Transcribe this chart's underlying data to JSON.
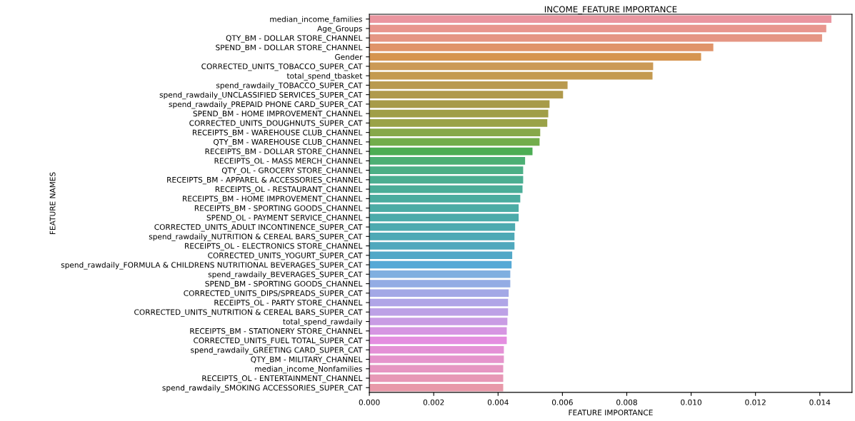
{
  "chart_data": {
    "type": "bar",
    "orientation": "horizontal",
    "title": "INCOME_FEATURE IMPORTANCE",
    "xlabel": "FEATURE IMPORTANCE",
    "ylabel": "FEATURE NAMES",
    "categories": [
      "median_income_families",
      "Age_Groups",
      "QTY_BM - DOLLAR STORE_CHANNEL",
      "SPEND_BM - DOLLAR STORE_CHANNEL",
      "Gender",
      "CORRECTED_UNITS_TOBACCO_SUPER_CAT",
      "total_spend_tbasket",
      "spend_rawdaily_TOBACCO_SUPER_CAT",
      "spend_rawdaily_UNCLASSIFIED SERVICES_SUPER_CAT",
      "spend_rawdaily_PREPAID PHONE CARD_SUPER_CAT",
      "SPEND_BM - HOME IMPROVEMENT_CHANNEL",
      "CORRECTED_UNITS_DOUGHNUTS_SUPER_CAT",
      "RECEIPTS_BM - WAREHOUSE CLUB_CHANNEL",
      "QTY_BM - WAREHOUSE CLUB_CHANNEL",
      "RECEIPTS_BM - DOLLAR STORE_CHANNEL",
      "RECEIPTS_OL - MASS MERCH_CHANNEL",
      "QTY_OL - GROCERY STORE_CHANNEL",
      "RECEIPTS_BM - APPAREL & ACCESSORIES_CHANNEL",
      "RECEIPTS_OL - RESTAURANT_CHANNEL",
      "RECEIPTS_BM - HOME IMPROVEMENT_CHANNEL",
      "RECEIPTS_BM - SPORTING GOODS_CHANNEL",
      "SPEND_OL - PAYMENT SERVICE_CHANNEL",
      "CORRECTED_UNITS_ADULT INCONTINENCE_SUPER_CAT",
      "spend_rawdaily_NUTRITION & CEREAL BARS_SUPER_CAT",
      "RECEIPTS_OL - ELECTRONICS STORE_CHANNEL",
      "CORRECTED_UNITS_YOGURT_SUPER_CAT",
      "spend_rawdaily_FORMULA & CHILDRENS NUTRITIONAL BEVERAGES_SUPER_CAT",
      "spend_rawdaily_BEVERAGES_SUPER_CAT",
      "SPEND_BM - SPORTING GOODS_CHANNEL",
      "CORRECTED_UNITS_DIPS/SPREADS_SUPER_CAT",
      "RECEIPTS_OL - PARTY STORE_CHANNEL",
      "CORRECTED_UNITS_NUTRITION & CEREAL BARS_SUPER_CAT",
      "total_spend_rawdaily",
      "RECEIPTS_BM - STATIONERY STORE_CHANNEL",
      "CORRECTED_UNITS_FUEL TOTAL_SUPER_CAT",
      "spend_rawdaily_GREETING CARD_SUPER_CAT",
      "QTY_BM - MILITARY_CHANNEL",
      "median_income_Nonfamilies",
      "RECEIPTS_OL - ENTERTAINMENT_CHANNEL",
      "spend_rawdaily_SMOKING ACCESSORIES_SUPER_CAT"
    ],
    "values": [
      0.01436,
      0.0142,
      0.01407,
      0.01069,
      0.01031,
      0.00882,
      0.0088,
      0.00616,
      0.00602,
      0.0056,
      0.00556,
      0.00553,
      0.00531,
      0.00529,
      0.00507,
      0.00484,
      0.00478,
      0.00478,
      0.00476,
      0.00469,
      0.00464,
      0.00464,
      0.00453,
      0.00451,
      0.00451,
      0.00444,
      0.00442,
      0.00438,
      0.00438,
      0.00433,
      0.00431,
      0.00431,
      0.00429,
      0.00427,
      0.00427,
      0.00418,
      0.00418,
      0.00416,
      0.00416,
      0.00416
    ],
    "colors": [
      "#ea96a0",
      "#e8968e",
      "#e59684",
      "#e0946a",
      "#d69550",
      "#cb9a56",
      "#c49a50",
      "#b99a50",
      "#b09a4c",
      "#a79b49",
      "#a09e48",
      "#9aa248",
      "#87a84a",
      "#72ad4c",
      "#4cad54",
      "#4caf74",
      "#4caf86",
      "#4bae91",
      "#4bad98",
      "#4bac9f",
      "#4caca5",
      "#4cabaa",
      "#4daab0",
      "#4ea9b6",
      "#4fa8bd",
      "#52a8c7",
      "#56a9d6",
      "#7fafe0",
      "#93ace4",
      "#a3a8e6",
      "#b0a5e7",
      "#bda1e6",
      "#c99ce4",
      "#d696e2",
      "#e48ee0",
      "#e491d6",
      "#e594cc",
      "#e696c2",
      "#e798b6",
      "#e899a9"
    ],
    "xlim": [
      0,
      0.015
    ],
    "xticks": [
      {
        "value": 0,
        "label": "0.000"
      },
      {
        "value": 0.002,
        "label": "0.002"
      },
      {
        "value": 0.004,
        "label": "0.004"
      },
      {
        "value": 0.006,
        "label": "0.006"
      },
      {
        "value": 0.008,
        "label": "0.008"
      },
      {
        "value": 0.01,
        "label": "0.010"
      },
      {
        "value": 0.012,
        "label": "0.012"
      },
      {
        "value": 0.014,
        "label": "0.014"
      }
    ]
  }
}
